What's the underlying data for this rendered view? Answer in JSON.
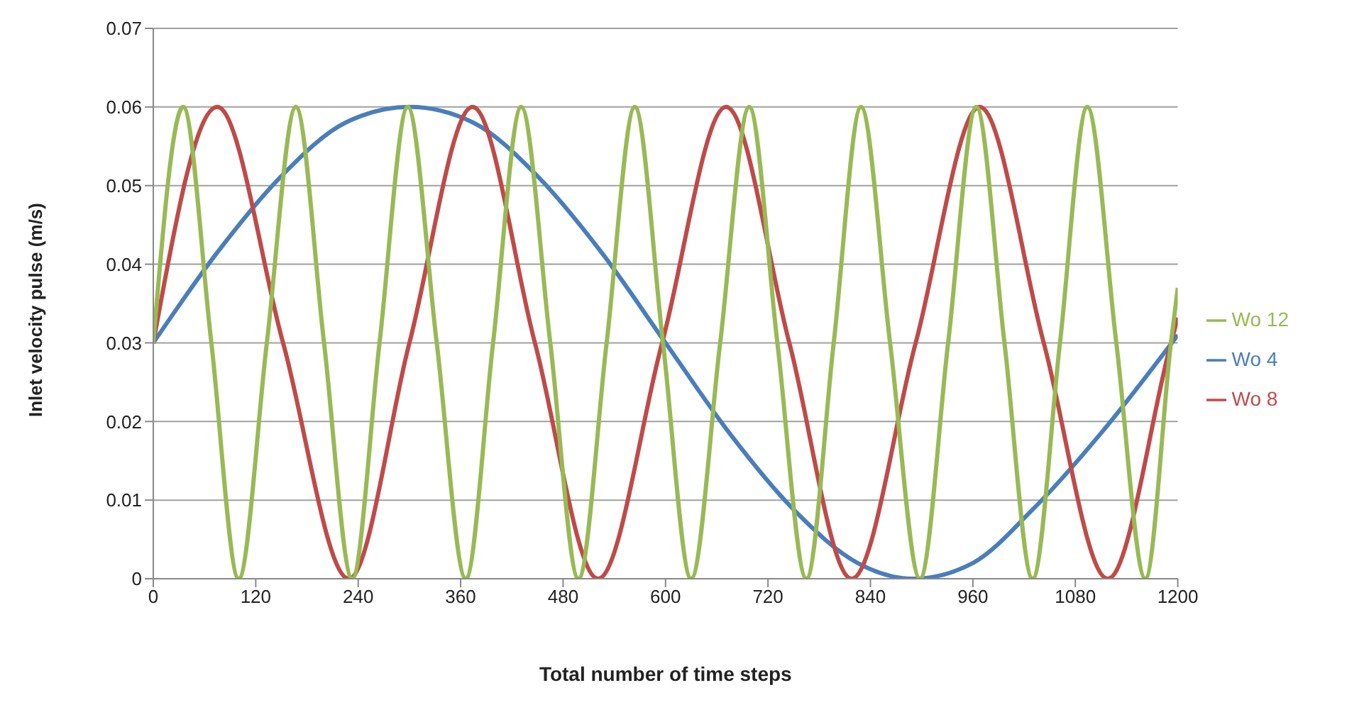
{
  "chart_data": {
    "type": "line",
    "xlabel": "Total number of time steps",
    "ylabel": "Inlet velocity pulse (m/s)",
    "xlim": [
      0,
      1200
    ],
    "xticks": [
      0,
      120,
      240,
      360,
      480,
      600,
      720,
      840,
      960,
      1080,
      1200
    ],
    "ylim": [
      0,
      0.07
    ],
    "yticks": [
      0,
      0.01,
      0.02,
      0.03,
      0.04,
      0.05,
      0.06,
      0.07
    ],
    "grid": "y",
    "legend": "right",
    "marker": "none",
    "line_style": "solid",
    "series": [
      {
        "name": "Wo 4",
        "color": "#4a7ebb",
        "x": [
          0,
          75,
          150,
          225,
          300,
          375,
          450,
          525,
          600,
          675,
          750,
          825,
          890,
          960,
          1030,
          1110,
          1200
        ],
        "values": [
          0.03,
          0.0415,
          0.0512,
          0.058,
          0.06,
          0.058,
          0.0512,
          0.0415,
          0.03,
          0.0185,
          0.0088,
          0.002,
          0,
          0.002,
          0.0088,
          0.0185,
          0.031
        ]
      },
      {
        "name": "Wo 8",
        "color": "#be4b48",
        "x": [
          0,
          75,
          152,
          229,
          300,
          374,
          447,
          521,
          596,
          671,
          745,
          818,
          893,
          968,
          1043,
          1118,
          1192,
          1200
        ],
        "values": [
          0.03,
          0.06,
          0.03,
          0,
          0.03,
          0.06,
          0.03,
          0,
          0.03,
          0.06,
          0.03,
          0,
          0.03,
          0.06,
          0.03,
          0,
          0.03,
          0.0332
        ]
      },
      {
        "name": "Wo 12",
        "color": "#98b954",
        "x": [
          0,
          35,
          68,
          100,
          133,
          167,
          200,
          233,
          265,
          298,
          332,
          366,
          398,
          431,
          465,
          498,
          531,
          564,
          597,
          630,
          664,
          698,
          731,
          765,
          797,
          829,
          863,
          898,
          931,
          964,
          997,
          1030,
          1062,
          1094,
          1128,
          1162,
          1192,
          1200
        ],
        "values": [
          0.03,
          0.06,
          0.03,
          0,
          0.03,
          0.06,
          0.03,
          0,
          0.03,
          0.06,
          0.03,
          0,
          0.03,
          0.06,
          0.03,
          0,
          0.03,
          0.06,
          0.03,
          0,
          0.03,
          0.06,
          0.03,
          0,
          0.03,
          0.06,
          0.03,
          0,
          0.03,
          0.06,
          0.03,
          0,
          0.03,
          0.06,
          0.03,
          0,
          0.03,
          0.037
        ]
      }
    ]
  }
}
